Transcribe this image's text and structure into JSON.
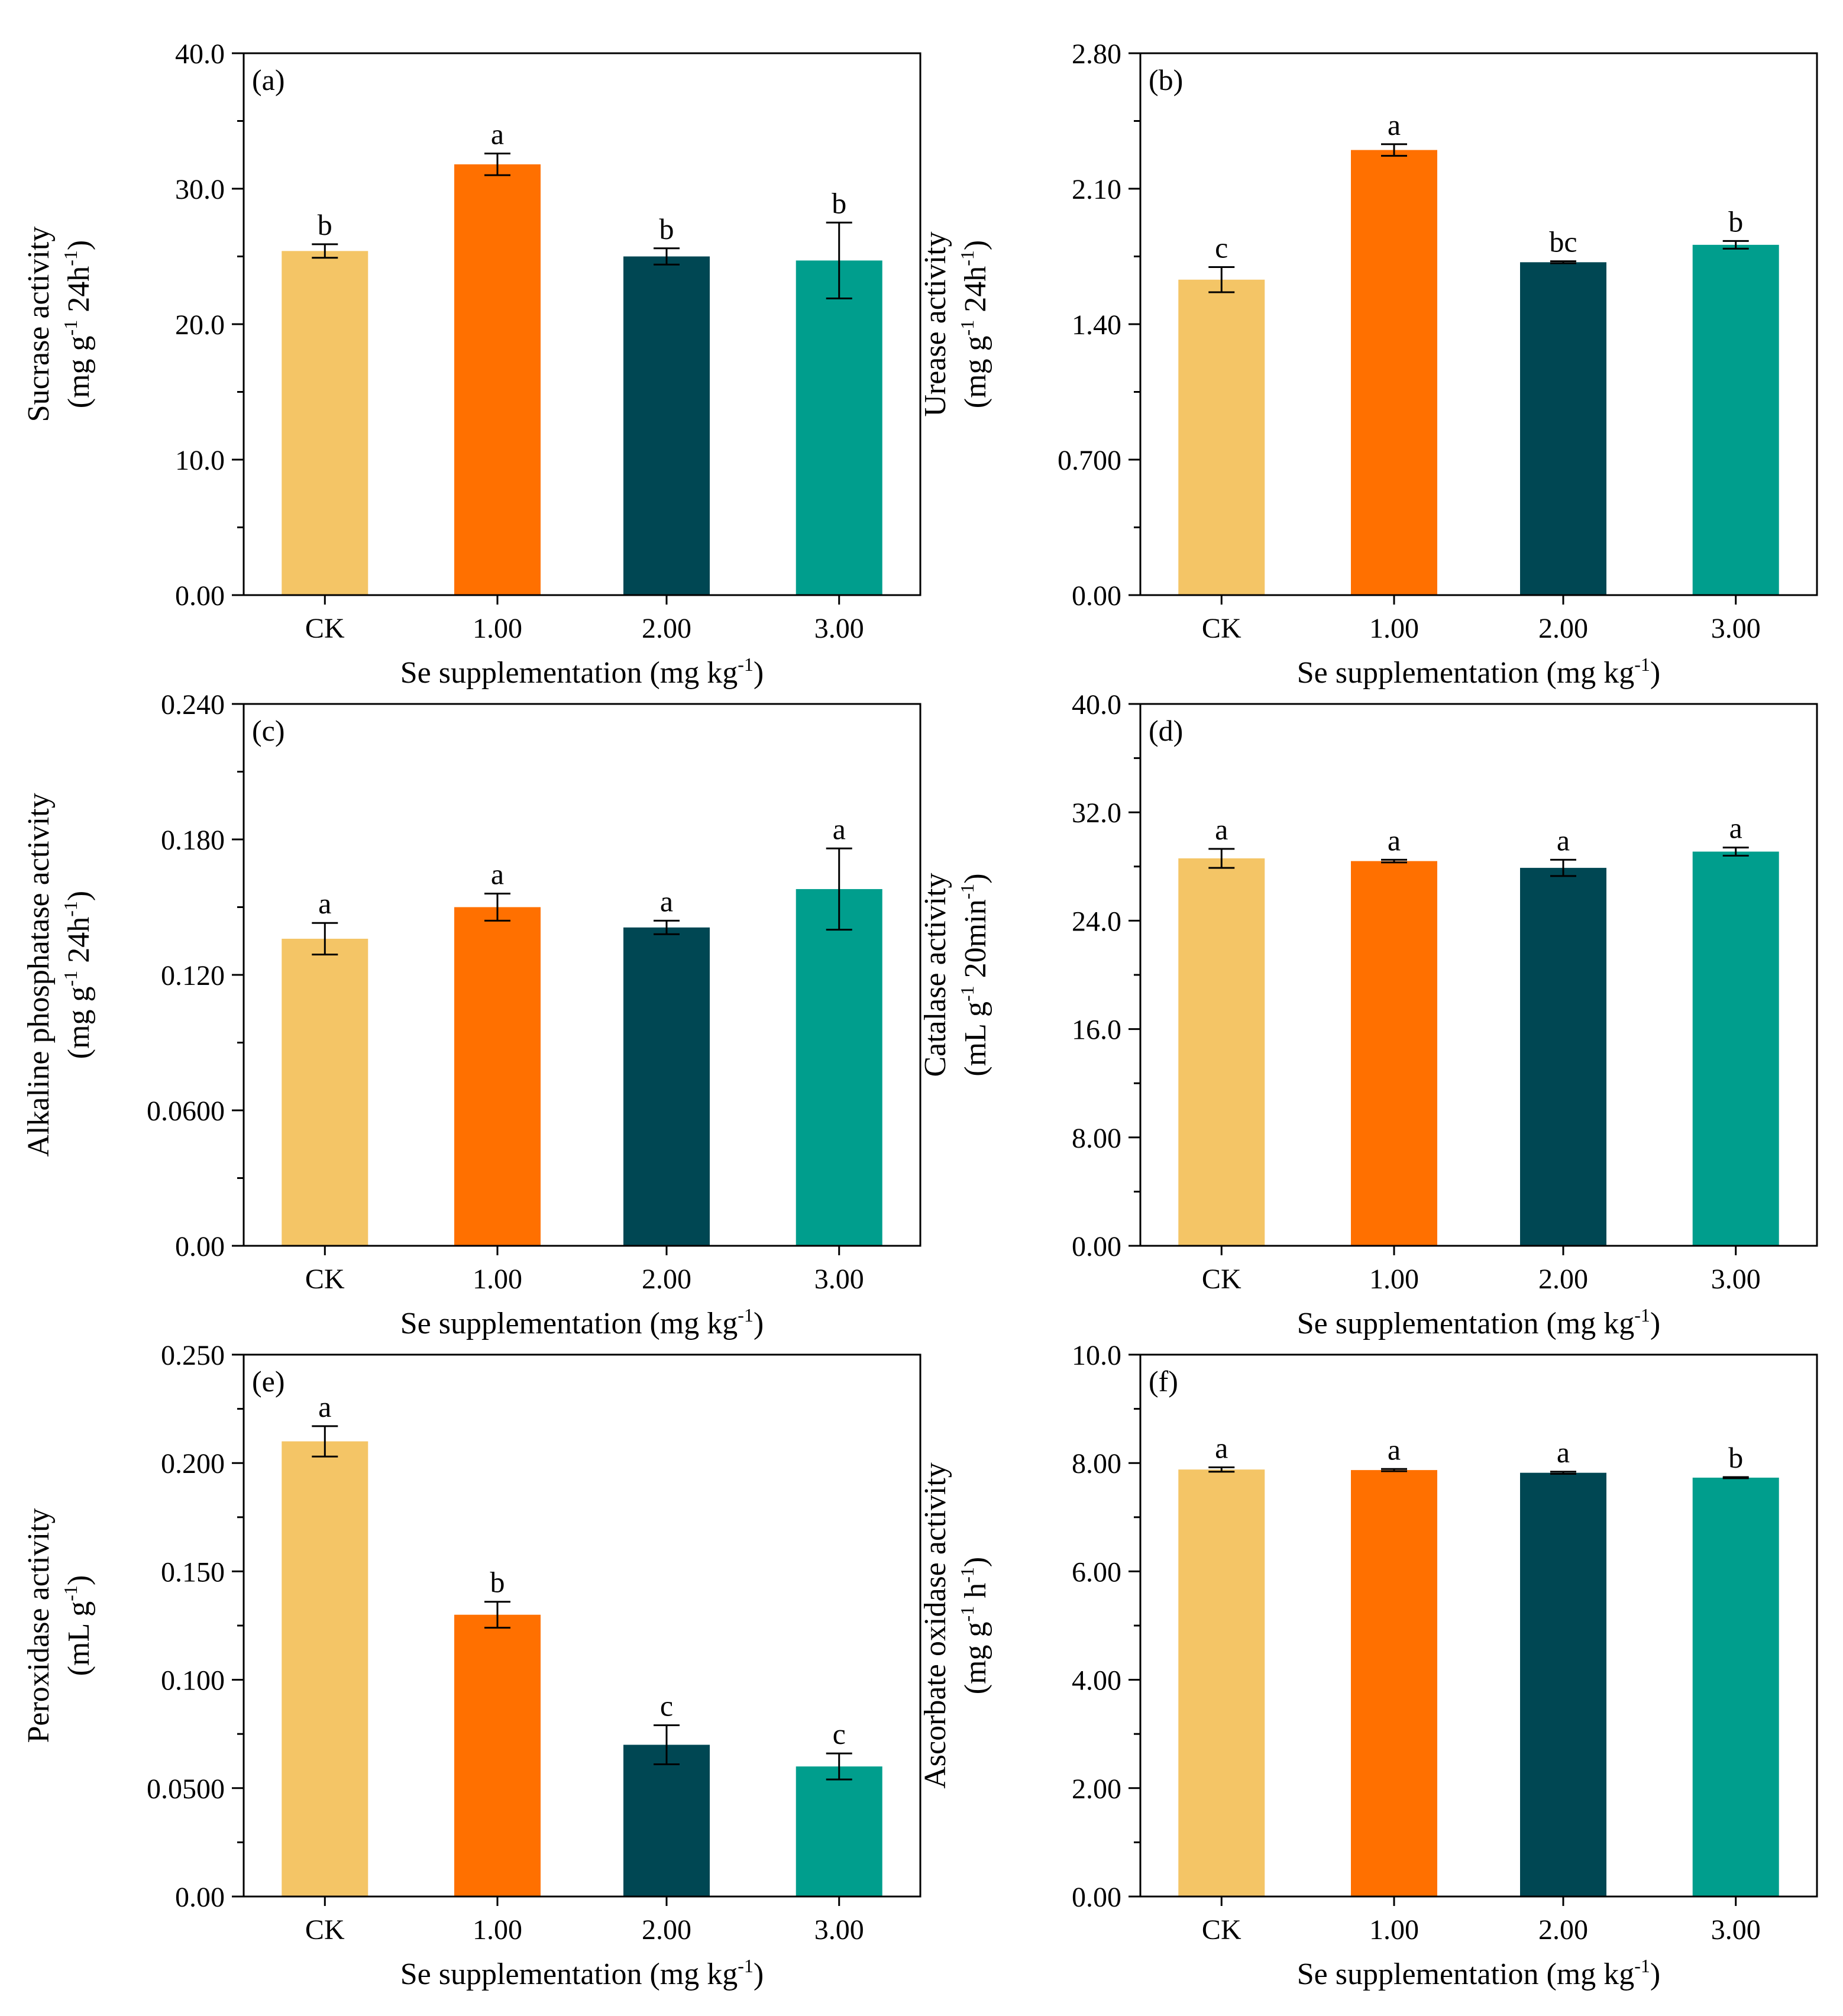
{
  "chart_data": [
    {
      "panel": "(a)",
      "type": "bar",
      "categories": [
        "CK",
        "1.00",
        "2.00",
        "3.00"
      ],
      "values": [
        25.4,
        31.8,
        25.0,
        24.7
      ],
      "errors": [
        0.5,
        0.8,
        0.6,
        2.8
      ],
      "significance": [
        "b",
        "a",
        "b",
        "b"
      ],
      "ylim": [
        0,
        40
      ],
      "yticks": [
        "0.00",
        "10.0",
        "20.0",
        "30.0",
        "40.0"
      ],
      "ylabel": {
        "line1": "Sucrase activity",
        "line2_pre": "(mg g",
        "sup1": "-1",
        "line2_mid": " 24h",
        "sup2": "-1",
        "line2_post": ")"
      },
      "xlabel": {
        "pre": "Se supplementation (mg kg",
        "sup": "-1",
        "post": ")"
      }
    },
    {
      "panel": "(b)",
      "type": "bar",
      "categories": [
        "CK",
        "1.00",
        "2.00",
        "3.00"
      ],
      "values": [
        1.63,
        2.3,
        1.72,
        1.81
      ],
      "errors": [
        0.065,
        0.03,
        0.005,
        0.02
      ],
      "significance": [
        "c",
        "a",
        "bc",
        "b"
      ],
      "ylim": [
        0,
        2.8
      ],
      "yticks": [
        "0.00",
        "0.700",
        "1.40",
        "2.10",
        "2.80"
      ],
      "ylabel": {
        "line1": "Urease activity",
        "line2_pre": "(mg g",
        "sup1": "-1",
        "line2_mid": " 24h",
        "sup2": "-1",
        "line2_post": ")"
      },
      "xlabel": {
        "pre": "Se supplementation (mg kg",
        "sup": "-1",
        "post": ")"
      }
    },
    {
      "panel": "(c)",
      "type": "bar",
      "categories": [
        "CK",
        "1.00",
        "2.00",
        "3.00"
      ],
      "values": [
        0.136,
        0.15,
        0.141,
        0.158
      ],
      "errors": [
        0.007,
        0.006,
        0.003,
        0.018
      ],
      "significance": [
        "a",
        "a",
        "a",
        "a"
      ],
      "ylim": [
        0,
        0.24
      ],
      "yticks": [
        "0.00",
        "0.0600",
        "0.120",
        "0.180",
        "0.240"
      ],
      "ylabel": {
        "line1": "Alkaline phosphatase activity",
        "line2_pre": "(mg g",
        "sup1": "-1",
        "line2_mid": " 24h",
        "sup2": "-1",
        "line2_post": ")"
      },
      "xlabel": {
        "pre": "Se supplementation (mg kg",
        "sup": "-1",
        "post": ")"
      }
    },
    {
      "panel": "(d)",
      "type": "bar",
      "categories": [
        "CK",
        "1.00",
        "2.00",
        "3.00"
      ],
      "values": [
        28.6,
        28.4,
        27.9,
        29.1
      ],
      "errors": [
        0.7,
        0.1,
        0.6,
        0.3
      ],
      "significance": [
        "a",
        "a",
        "a",
        "a"
      ],
      "ylim": [
        0,
        40
      ],
      "yticks": [
        "0.00",
        "8.00",
        "16.0",
        "24.0",
        "32.0",
        "40.0"
      ],
      "ylabel": {
        "line1": "Catalase activity",
        "line2_pre": "(mL g",
        "sup1": "-1",
        "line2_mid": " 20min",
        "sup2": "-1",
        "line2_post": ")"
      },
      "xlabel": {
        "pre": "Se supplementation (mg kg",
        "sup": "-1",
        "post": ")"
      }
    },
    {
      "panel": "(e)",
      "type": "bar",
      "categories": [
        "CK",
        "1.00",
        "2.00",
        "3.00"
      ],
      "values": [
        0.21,
        0.13,
        0.07,
        0.06
      ],
      "errors": [
        0.007,
        0.006,
        0.009,
        0.006
      ],
      "significance": [
        "a",
        "b",
        "c",
        "c"
      ],
      "ylim": [
        0,
        0.25
      ],
      "yticks": [
        "0.00",
        "0.0500",
        "0.100",
        "0.150",
        "0.200",
        "0.250"
      ],
      "ylabel": {
        "line1": "Peroxidase activity",
        "line2_pre": "(mL g",
        "sup1": "-1",
        "line2_mid": "",
        "sup2": "",
        "line2_post": ")"
      },
      "xlabel": {
        "pre": "Se supplementation (mg kg",
        "sup": "-1",
        "post": ")"
      }
    },
    {
      "panel": "(f)",
      "type": "bar",
      "categories": [
        "CK",
        "1.00",
        "2.00",
        "3.00"
      ],
      "values": [
        7.88,
        7.87,
        7.82,
        7.73
      ],
      "errors": [
        0.04,
        0.02,
        0.02,
        0.01
      ],
      "significance": [
        "a",
        "a",
        "a",
        "b"
      ],
      "ylim": [
        0,
        10
      ],
      "yticks": [
        "0.00",
        "2.00",
        "4.00",
        "6.00",
        "8.00",
        "10.0"
      ],
      "ylabel": {
        "line1": "Ascorbate oxidase activity",
        "line2_pre": "(mg g",
        "sup1": "-1",
        "line2_mid": " h",
        "sup2": "-1",
        "line2_post": ")"
      },
      "xlabel": {
        "pre": "Se supplementation (mg kg",
        "sup": "-1",
        "post": ")"
      }
    }
  ],
  "colors": {
    "bars": [
      "#F4C566",
      "#FF7000",
      "#004753",
      "#009E8D"
    ],
    "axis": "#000000"
  }
}
